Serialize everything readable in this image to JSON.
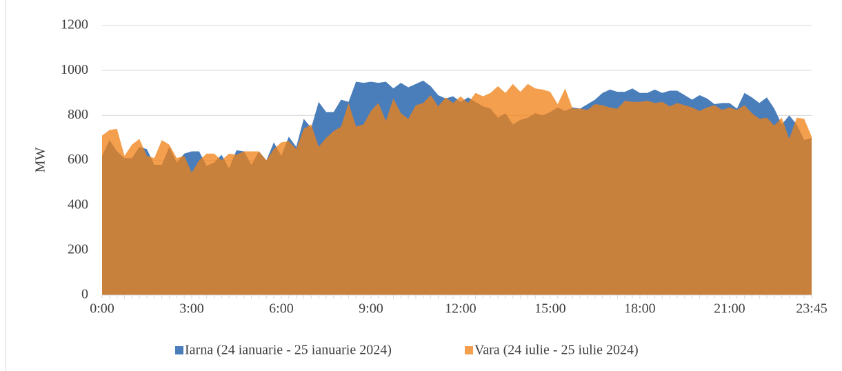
{
  "chart_data": {
    "type": "area",
    "y_label": "MW",
    "categories": [
      "0:00",
      null,
      null,
      null,
      null,
      null,
      null,
      null,
      null,
      null,
      null,
      null,
      "3:00",
      null,
      null,
      null,
      null,
      null,
      null,
      null,
      null,
      null,
      null,
      null,
      "6:00",
      null,
      null,
      null,
      null,
      null,
      null,
      null,
      null,
      null,
      null,
      null,
      "9:00",
      null,
      null,
      null,
      null,
      null,
      null,
      null,
      null,
      null,
      null,
      null,
      "12:00",
      null,
      null,
      null,
      null,
      null,
      null,
      null,
      null,
      null,
      null,
      null,
      "15:00",
      null,
      null,
      null,
      null,
      null,
      null,
      null,
      null,
      null,
      null,
      null,
      "18:00",
      null,
      null,
      null,
      null,
      null,
      null,
      null,
      null,
      null,
      null,
      null,
      "21:00",
      null,
      null,
      null,
      null,
      null,
      null,
      null,
      null,
      null,
      null,
      "23:45"
    ],
    "series": [
      {
        "name": "Iarna (24 ianuarie - 25 ianuarie 2024)",
        "color": "#4a7ebb",
        "opacity": 1,
        "values": [
          620,
          690,
          640,
          610,
          610,
          660,
          650,
          580,
          580,
          660,
          590,
          630,
          640,
          640,
          575,
          590,
          625,
          565,
          645,
          640,
          580,
          640,
          600,
          680,
          620,
          705,
          660,
          785,
          745,
          860,
          815,
          815,
          870,
          860,
          950,
          945,
          950,
          945,
          950,
          920,
          945,
          925,
          940,
          955,
          930,
          890,
          875,
          885,
          860,
          880,
          860,
          840,
          830,
          790,
          810,
          760,
          780,
          790,
          810,
          800,
          815,
          835,
          820,
          835,
          830,
          850,
          870,
          900,
          915,
          905,
          905,
          920,
          900,
          900,
          915,
          900,
          910,
          910,
          890,
          870,
          890,
          875,
          850,
          855,
          855,
          830,
          900,
          880,
          855,
          880,
          830,
          760,
          800,
          760,
          690,
          700
        ]
      },
      {
        "name": "Vara (24 iulie - 25 iulie 2024)",
        "color": "#f08115",
        "opacity": 0.76,
        "values": [
          710,
          735,
          740,
          620,
          670,
          695,
          620,
          610,
          690,
          670,
          610,
          620,
          545,
          600,
          630,
          630,
          600,
          630,
          625,
          640,
          640,
          640,
          600,
          650,
          680,
          685,
          650,
          740,
          760,
          660,
          700,
          730,
          750,
          855,
          750,
          760,
          820,
          855,
          775,
          875,
          810,
          785,
          845,
          855,
          890,
          840,
          880,
          855,
          885,
          855,
          900,
          885,
          900,
          930,
          900,
          940,
          905,
          940,
          920,
          915,
          905,
          850,
          920,
          830,
          830,
          825,
          850,
          845,
          835,
          830,
          865,
          860,
          860,
          865,
          855,
          860,
          840,
          855,
          845,
          835,
          820,
          835,
          845,
          825,
          835,
          825,
          845,
          810,
          785,
          790,
          755,
          790,
          695,
          790,
          785,
          705
        ]
      }
    ],
    "ylim": [
      0,
      1200
    ],
    "yticks": [
      0,
      200,
      400,
      600,
      800,
      1000,
      1200
    ],
    "grid": true,
    "legend": "bottom"
  }
}
